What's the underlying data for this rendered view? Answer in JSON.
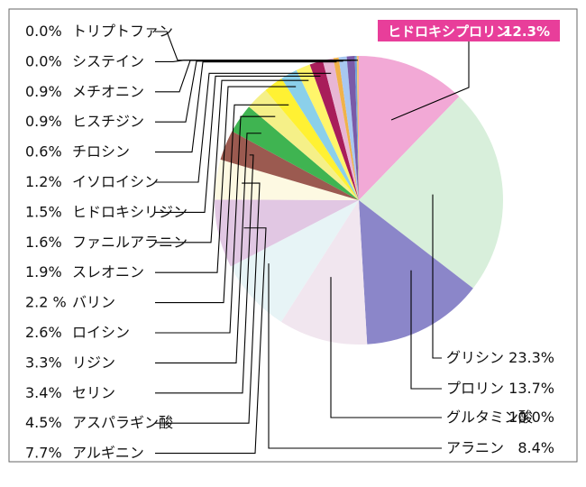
{
  "chart_data": {
    "type": "pie",
    "title": "",
    "slices": [
      {
        "label": "ヒドロキシプロリン",
        "value": 12.3,
        "value_text": "12.3%",
        "color": "#f2a9d6",
        "highlight": true,
        "highlight_color": "#e83e9a"
      },
      {
        "label": "グリシン",
        "value": 23.3,
        "value_text": "23.3%",
        "color": "#d8efdb"
      },
      {
        "label": "プロリン",
        "value": 13.7,
        "value_text": "13.7%",
        "color": "#8b86c9"
      },
      {
        "label": "グルタミン酸",
        "value": 10.0,
        "value_text": "10.0%",
        "color": "#f1e6ef"
      },
      {
        "label": "アラニン",
        "value": 8.4,
        "value_text": "8.4%",
        "color": "#e7f4f6"
      },
      {
        "label": "アルギニン",
        "value": 7.7,
        "value_text": "7.7%",
        "color": "#e1c7e3"
      },
      {
        "label": "アスパラギン酸",
        "value": 4.5,
        "value_text": "4.5%",
        "color": "#fdf9e2"
      },
      {
        "label": "セリン",
        "value": 3.4,
        "value_text": "3.4%",
        "color": "#9b5a50"
      },
      {
        "label": "リジン",
        "value": 3.3,
        "value_text": "3.3%",
        "color": "#3fb451"
      },
      {
        "label": "ロイシン",
        "value": 2.6,
        "value_text": "2.6%",
        "color": "#f5f088"
      },
      {
        "label": "バリン",
        "value": 2.2,
        "value_text": "2.2 %",
        "color": "#fff133"
      },
      {
        "label": "スレオニン",
        "value": 1.9,
        "value_text": "1.9%",
        "color": "#8bd0ea"
      },
      {
        "label": "ファニルアラニン",
        "value": 1.6,
        "value_text": "1.6%",
        "color": "#fff56a"
      },
      {
        "label": "ヒドロキシリジン",
        "value": 1.5,
        "value_text": "1.5%",
        "color": "#a81d5a"
      },
      {
        "label": "イソロイシン",
        "value": 1.2,
        "value_text": "1.2%",
        "color": "#e8b6d4"
      },
      {
        "label": "チロシン",
        "value": 0.6,
        "value_text": "0.6%",
        "color": "#f0b24a"
      },
      {
        "label": "ヒスチジン",
        "value": 0.9,
        "value_text": "0.9%",
        "color": "#a8c8f0"
      },
      {
        "label": "メチオニン",
        "value": 0.9,
        "value_text": "0.9%",
        "color": "#7a5aa8"
      },
      {
        "label": "システイン",
        "value": 0.0,
        "value_text": "0.0%",
        "color": "#6fa3d8"
      },
      {
        "label": "トリプトファン",
        "value": 0.0,
        "value_text": "0.0%",
        "color": "#f4c37a"
      }
    ]
  }
}
